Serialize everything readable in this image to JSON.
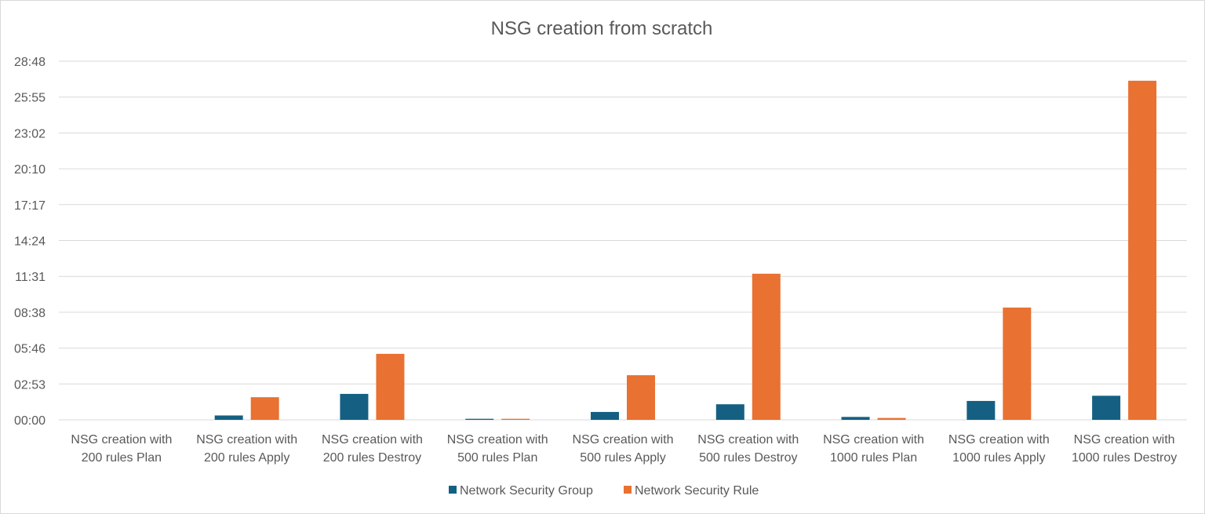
{
  "chart_data": {
    "type": "bar",
    "title": "NSG creation from scratch",
    "xlabel": "",
    "ylabel": "",
    "categories": [
      [
        "NSG creation with",
        "200 rules Plan"
      ],
      [
        "NSG creation with",
        "200 rules Apply"
      ],
      [
        "NSG creation with",
        "200 rules Destroy"
      ],
      [
        "NSG creation with",
        "500 rules Plan"
      ],
      [
        "NSG creation with",
        "500 rules Apply"
      ],
      [
        "NSG creation with",
        "500 rules Destroy"
      ],
      [
        "NSG creation with",
        "1000 rules Plan"
      ],
      [
        "NSG creation with",
        "1000 rules Apply"
      ],
      [
        "NSG creation with",
        "1000 rules Destroy"
      ]
    ],
    "y_ticks": [
      "00:00",
      "02:53",
      "05:46",
      "08:38",
      "11:31",
      "14:24",
      "17:17",
      "20:10",
      "23:02",
      "25:55",
      "28:48"
    ],
    "y_unit": "seconds",
    "ylim": [
      0,
      1728
    ],
    "grid": true,
    "legend_position": "bottom",
    "series": [
      {
        "name": "Network Security Group",
        "color": "#156082",
        "values": [
          0,
          21,
          125,
          5,
          38,
          75,
          14,
          91,
          116
        ]
      },
      {
        "name": "Network Security Rule",
        "color": "#E97132",
        "values": [
          0,
          109,
          318,
          5,
          215,
          704,
          9,
          541,
          1634
        ]
      }
    ]
  }
}
